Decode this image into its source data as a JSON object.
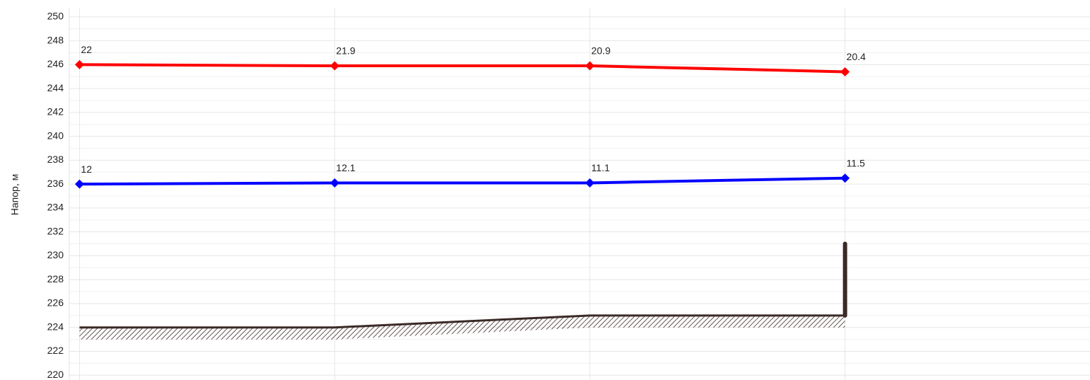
{
  "chart_data": {
    "type": "line",
    "ylabel": "Напор, м",
    "x": [
      0,
      1,
      2,
      3
    ],
    "xlim": [
      -0.04,
      3.96
    ],
    "ylim": [
      219.6,
      250.7
    ],
    "yticks": [
      220,
      222,
      224,
      226,
      228,
      230,
      232,
      234,
      236,
      238,
      240,
      242,
      244,
      246,
      248,
      250
    ],
    "yminorticks": [
      221,
      223,
      225,
      227,
      229,
      231,
      233,
      235,
      237,
      239,
      241,
      243,
      245,
      247,
      249
    ],
    "grid": true,
    "series": [
      {
        "color": "#ff0000",
        "values": [
          246.0,
          245.9,
          245.9,
          245.4
        ],
        "pressure": [
          22,
          21.9,
          20.9,
          20.4
        ]
      },
      {
        "color": "#0000ff",
        "values": [
          236.0,
          236.1,
          236.1,
          236.5
        ],
        "pressure": [
          12,
          12.1,
          11.1,
          11.5
        ]
      }
    ],
    "ground": {
      "color": "#3b2a27",
      "values": [
        224,
        224,
        225,
        225
      ]
    },
    "riser": {
      "x": 3,
      "top": 231,
      "color": "#3b2a27"
    }
  }
}
